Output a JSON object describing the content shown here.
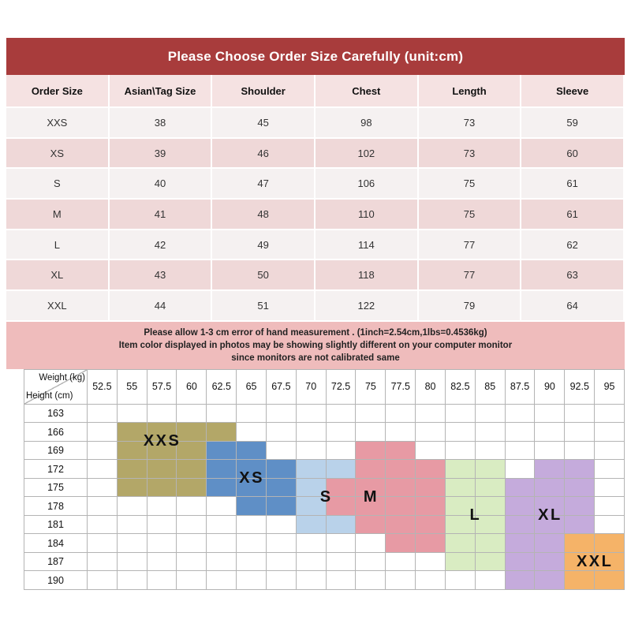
{
  "banner": {
    "title": "Please Choose Order Size Carefully (unit:cm)",
    "bg": "#a83c3c",
    "text_color": "#ffffff"
  },
  "size_table": {
    "columns": [
      "Order Size",
      "Asian\\Tag Size",
      "Shoulder",
      "Chest",
      "Length",
      "Sleeve"
    ],
    "rows": [
      [
        "XXS",
        "38",
        "45",
        "98",
        "73",
        "59"
      ],
      [
        "XS",
        "39",
        "46",
        "102",
        "73",
        "60"
      ],
      [
        "S",
        "40",
        "47",
        "106",
        "75",
        "61"
      ],
      [
        "M",
        "41",
        "48",
        "110",
        "75",
        "61"
      ],
      [
        "L",
        "42",
        "49",
        "114",
        "77",
        "62"
      ],
      [
        "XL",
        "43",
        "50",
        "118",
        "77",
        "63"
      ],
      [
        "XXL",
        "44",
        "51",
        "122",
        "79",
        "64"
      ]
    ],
    "colors": {
      "header_bg": "#f5e2e2",
      "row_light": "#f5f1f1",
      "row_pink": "#efd8d8"
    }
  },
  "notes": {
    "bg": "#efbcbc",
    "lines": [
      "Please allow 1-3 cm error of hand measurement . (1inch=2.54cm,1lbs=0.4536kg)",
      "Item color displayed in photos may be showing slightly different on your computer monitor",
      "since monitors are not calibrated same"
    ]
  },
  "chart_data": {
    "type": "heatmap",
    "x_label": "Weight (kg)",
    "y_label": "Height (cm)",
    "grid": true,
    "x_ticks": [
      52.5,
      55,
      57.5,
      60,
      62.5,
      65,
      67.5,
      70,
      72.5,
      75,
      77.5,
      80,
      82.5,
      85,
      87.5,
      90,
      92.5,
      95
    ],
    "y_ticks": [
      163,
      166,
      169,
      172,
      175,
      178,
      181,
      184,
      187,
      190
    ],
    "regions": [
      {
        "label": "XXS",
        "color": "#b3a768",
        "cells": [
          [
            1,
            1,
            4
          ],
          [
            2,
            1,
            3
          ],
          [
            3,
            1,
            3
          ],
          [
            4,
            1,
            3
          ]
        ],
        "label_area": [
          1,
          2,
          1,
          3
        ]
      },
      {
        "label": "XS",
        "color": "#5f8fc6",
        "cells": [
          [
            2,
            4,
            5
          ],
          [
            3,
            4,
            6
          ],
          [
            4,
            4,
            6
          ],
          [
            5,
            5,
            6
          ]
        ],
        "label_area": [
          3,
          4,
          4,
          6
        ]
      },
      {
        "label": "S",
        "color": "#b9d2ea",
        "cells": [
          [
            3,
            7,
            8
          ],
          [
            4,
            7,
            8
          ],
          [
            5,
            7,
            8
          ],
          [
            6,
            7,
            8
          ]
        ],
        "label_area": [
          4,
          5,
          7,
          8
        ]
      },
      {
        "label": "M",
        "color": "#e79aa4",
        "cells": [
          [
            2,
            9,
            10
          ],
          [
            3,
            9,
            11
          ],
          [
            4,
            8,
            11
          ],
          [
            5,
            8,
            11
          ],
          [
            6,
            9,
            11
          ],
          [
            7,
            10,
            11
          ]
        ],
        "label_area": [
          4,
          5,
          8,
          10
        ]
      },
      {
        "label": "L",
        "color": "#d9ecc2",
        "cells": [
          [
            3,
            12,
            13
          ],
          [
            4,
            12,
            14
          ],
          [
            5,
            12,
            14
          ],
          [
            6,
            12,
            14
          ],
          [
            7,
            12,
            14
          ],
          [
            8,
            12,
            13
          ]
        ],
        "label_area": [
          5,
          6,
          12,
          13
        ]
      },
      {
        "label": "XL",
        "color": "#c5abdc",
        "cells": [
          [
            3,
            15,
            16
          ],
          [
            4,
            14,
            16
          ],
          [
            5,
            14,
            16
          ],
          [
            6,
            14,
            16
          ],
          [
            7,
            14,
            16
          ],
          [
            8,
            14,
            16
          ],
          [
            9,
            14,
            15
          ]
        ],
        "label_area": [
          5,
          6,
          14,
          16
        ]
      },
      {
        "label": "XXL",
        "color": "#f5b368",
        "cells": [
          [
            7,
            16,
            17
          ],
          [
            8,
            16,
            17
          ],
          [
            9,
            16,
            17
          ]
        ],
        "label_area": [
          7,
          9,
          16,
          17
        ]
      }
    ]
  }
}
